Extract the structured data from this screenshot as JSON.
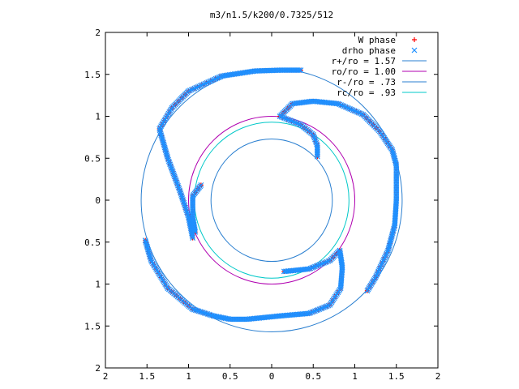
{
  "chart_data": {
    "type": "scatter",
    "title": "m3/n1.5/k200/0.7325/512",
    "xlabel": "",
    "ylabel": "",
    "xlim": [
      -2,
      2
    ],
    "ylim": [
      -2,
      2
    ],
    "x_tick_values": [
      -2,
      -1.5,
      -1,
      -0.5,
      0,
      0.5,
      1,
      1.5,
      2
    ],
    "x_tick_labels": [
      "2",
      "1.5",
      "1",
      "0.5",
      "0",
      "0.5",
      "1",
      "1.5",
      "2"
    ],
    "y_tick_values": [
      2,
      1.5,
      1,
      0.5,
      0,
      -0.5,
      -1,
      -1.5,
      -2
    ],
    "y_tick_labels": [
      "2",
      "1.5",
      "1",
      "0.5",
      "0",
      "0.5",
      "1",
      "1.5",
      "2"
    ],
    "grid": false,
    "legend_position": "top-right",
    "legend": [
      {
        "label": "W phase",
        "marker": "plus",
        "color": "#ff0000"
      },
      {
        "label": "drho phase",
        "marker": "cross",
        "color": "#1e90ff"
      },
      {
        "label": "r+/ro = 1.57",
        "marker": "line",
        "color": "#2a7fd0"
      },
      {
        "label": "ro/ro = 1.00",
        "marker": "line",
        "color": "#b000b0"
      },
      {
        "label": "r-/ro = .73",
        "marker": "line",
        "color": "#2a7fd0"
      },
      {
        "label": "rc/ro = .93",
        "marker": "line",
        "color": "#00c8c8"
      }
    ],
    "circles": [
      {
        "name": "r+/ro = 1.57",
        "r": 1.57,
        "color": "#2a7fd0"
      },
      {
        "name": "ro/ro = 1.00",
        "r": 1.0,
        "color": "#b000b0"
      },
      {
        "name": "r-/ro = .73",
        "r": 0.73,
        "color": "#2a7fd0"
      },
      {
        "name": "rc/ro = .93",
        "r": 0.93,
        "color": "#00c8c8"
      }
    ],
    "series": [
      {
        "name": "W phase",
        "color": "#ff0000",
        "marker": "plus",
        "arms": [
          [
            [
              0.1,
              1.0
            ],
            [
              0.25,
              1.15
            ],
            [
              0.5,
              1.18
            ],
            [
              0.8,
              1.15
            ],
            [
              1.1,
              1.02
            ],
            [
              1.3,
              0.82
            ],
            [
              1.45,
              0.6
            ],
            [
              1.5,
              0.42
            ],
            [
              1.5,
              0.0
            ],
            [
              1.48,
              -0.3
            ],
            [
              1.4,
              -0.6
            ],
            [
              1.25,
              -0.92
            ],
            [
              1.15,
              -1.08
            ]
          ],
          [
            [
              -0.95,
              -0.45
            ],
            [
              -1.0,
              -0.2
            ],
            [
              -1.1,
              0.1
            ],
            [
              -1.25,
              0.5
            ],
            [
              -1.35,
              0.85
            ],
            [
              -1.2,
              1.1
            ],
            [
              -1.0,
              1.3
            ],
            [
              -0.6,
              1.48
            ],
            [
              -0.2,
              1.54
            ],
            [
              0.1,
              1.55
            ],
            [
              0.35,
              1.55
            ]
          ],
          [
            [
              -0.85,
              0.18
            ],
            [
              -0.95,
              0.05
            ],
            [
              -0.95,
              -0.2
            ],
            [
              -0.92,
              -0.38
            ]
          ],
          [
            [
              0.15,
              -0.85
            ],
            [
              0.45,
              -0.82
            ],
            [
              0.7,
              -0.72
            ],
            [
              0.82,
              -0.6
            ],
            [
              0.85,
              -0.8
            ],
            [
              0.83,
              -1.05
            ],
            [
              0.7,
              -1.25
            ],
            [
              0.45,
              -1.35
            ],
            [
              0.1,
              -1.38
            ],
            [
              -0.3,
              -1.42
            ],
            [
              -0.5,
              -1.42
            ],
            [
              -0.7,
              -1.38
            ],
            [
              -0.95,
              -1.3
            ],
            [
              -1.25,
              -1.05
            ],
            [
              -1.45,
              -0.72
            ],
            [
              -1.52,
              -0.48
            ]
          ],
          [
            [
              0.1,
              1.0
            ],
            [
              0.35,
              0.9
            ],
            [
              0.5,
              0.78
            ],
            [
              0.55,
              0.65
            ],
            [
              0.55,
              0.52
            ]
          ]
        ]
      },
      {
        "name": "drho phase",
        "color": "#1e90ff",
        "marker": "cross",
        "arms": [
          [
            [
              0.1,
              1.0
            ],
            [
              0.25,
              1.15
            ],
            [
              0.5,
              1.18
            ],
            [
              0.8,
              1.15
            ],
            [
              1.1,
              1.02
            ],
            [
              1.3,
              0.82
            ],
            [
              1.45,
              0.6
            ],
            [
              1.5,
              0.42
            ],
            [
              1.5,
              0.0
            ],
            [
              1.48,
              -0.3
            ],
            [
              1.4,
              -0.6
            ],
            [
              1.25,
              -0.92
            ],
            [
              1.15,
              -1.08
            ]
          ],
          [
            [
              -0.95,
              -0.45
            ],
            [
              -1.0,
              -0.2
            ],
            [
              -1.1,
              0.1
            ],
            [
              -1.25,
              0.5
            ],
            [
              -1.35,
              0.85
            ],
            [
              -1.2,
              1.1
            ],
            [
              -1.0,
              1.3
            ],
            [
              -0.6,
              1.48
            ],
            [
              -0.2,
              1.54
            ],
            [
              0.1,
              1.55
            ],
            [
              0.35,
              1.55
            ]
          ],
          [
            [
              -0.85,
              0.18
            ],
            [
              -0.95,
              0.05
            ],
            [
              -0.95,
              -0.2
            ],
            [
              -0.92,
              -0.38
            ]
          ],
          [
            [
              0.15,
              -0.85
            ],
            [
              0.45,
              -0.82
            ],
            [
              0.7,
              -0.72
            ],
            [
              0.82,
              -0.6
            ],
            [
              0.85,
              -0.8
            ],
            [
              0.83,
              -1.05
            ],
            [
              0.7,
              -1.25
            ],
            [
              0.45,
              -1.35
            ],
            [
              0.1,
              -1.38
            ],
            [
              -0.3,
              -1.42
            ],
            [
              -0.5,
              -1.42
            ],
            [
              -0.7,
              -1.38
            ],
            [
              -0.95,
              -1.3
            ],
            [
              -1.25,
              -1.05
            ],
            [
              -1.45,
              -0.72
            ],
            [
              -1.52,
              -0.48
            ]
          ],
          [
            [
              0.1,
              1.0
            ],
            [
              0.35,
              0.9
            ],
            [
              0.5,
              0.78
            ],
            [
              0.55,
              0.65
            ],
            [
              0.55,
              0.52
            ]
          ]
        ]
      }
    ]
  }
}
